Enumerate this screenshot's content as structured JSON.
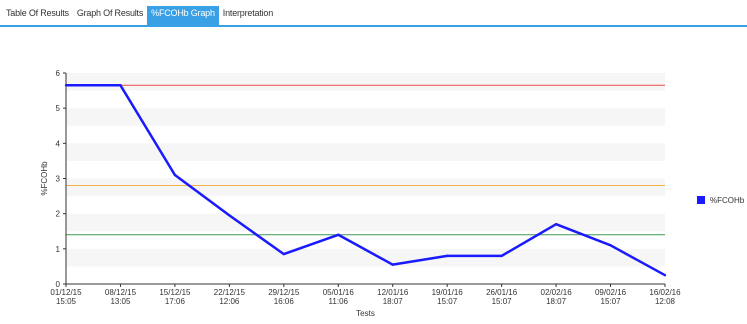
{
  "tabs": [
    {
      "label": "Table Of Results",
      "active": false
    },
    {
      "label": "Graph Of Results",
      "active": false
    },
    {
      "label": "%FCOHb Graph",
      "active": true
    },
    {
      "label": "Interpretation",
      "active": false
    }
  ],
  "colors": {
    "accent": "#3aa0e6",
    "series": "#1a1aff",
    "upper_line": "#e94b4b",
    "middle_line": "#f0b44a",
    "lower_line": "#3f9a55"
  },
  "chart_data": {
    "type": "line",
    "xlabel": "Tests",
    "ylabel": "%FCOHb",
    "ylim": [
      0,
      6
    ],
    "yticks": [
      "0",
      "1",
      "2",
      "3",
      "4",
      "5",
      "6"
    ],
    "categories": [
      [
        "01/12/15",
        "15:05"
      ],
      [
        "08/12/15",
        "13:05"
      ],
      [
        "15/12/15",
        "17:06"
      ],
      [
        "22/12/15",
        "12:06"
      ],
      [
        "29/12/15",
        "16:06"
      ],
      [
        "05/01/16",
        "11:06"
      ],
      [
        "12/01/16",
        "18:07"
      ],
      [
        "19/01/16",
        "15:07"
      ],
      [
        "26/01/16",
        "15:07"
      ],
      [
        "02/02/16",
        "18:07"
      ],
      [
        "09/02/16",
        "15:07"
      ],
      [
        "16/02/16",
        "12:08"
      ]
    ],
    "series": [
      {
        "name": "%FCOHb",
        "values": [
          5.65,
          5.65,
          3.1,
          1.95,
          0.85,
          1.4,
          0.55,
          0.8,
          0.8,
          1.7,
          1.1,
          0.25
        ]
      }
    ],
    "reference_lines": [
      {
        "value": 5.65,
        "color": "#e94b4b"
      },
      {
        "value": 2.8,
        "color": "#f0b44a"
      },
      {
        "value": 1.4,
        "color": "#3f9a55"
      }
    ],
    "legend_position": "right"
  }
}
